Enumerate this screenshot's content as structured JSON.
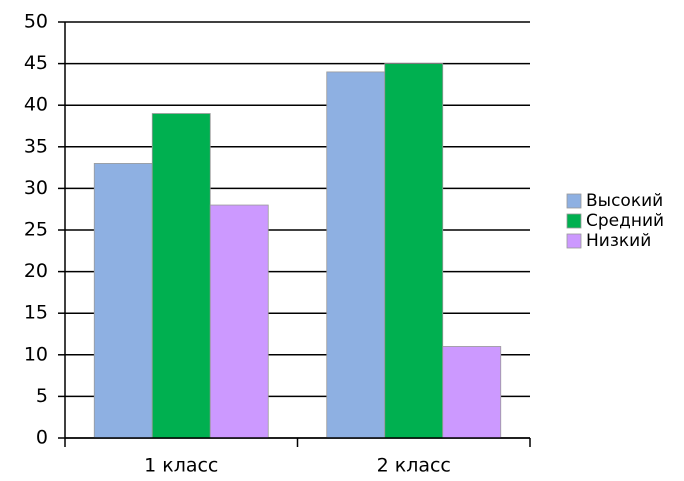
{
  "chart_data": {
    "type": "bar",
    "categories": [
      "1 класс",
      "2 класс"
    ],
    "series": [
      {
        "name": "Высокий",
        "color": "#8eb0e2",
        "values": [
          33,
          44
        ]
      },
      {
        "name": "Средний",
        "color": "#00b050",
        "values": [
          39,
          45
        ]
      },
      {
        "name": "Низкий",
        "color": "#cc99ff",
        "values": [
          28,
          11
        ]
      }
    ],
    "ylim": [
      0,
      50
    ],
    "yticks": [
      0,
      5,
      10,
      15,
      20,
      25,
      30,
      35,
      40,
      45,
      50
    ],
    "grid": true,
    "legend": "right"
  }
}
